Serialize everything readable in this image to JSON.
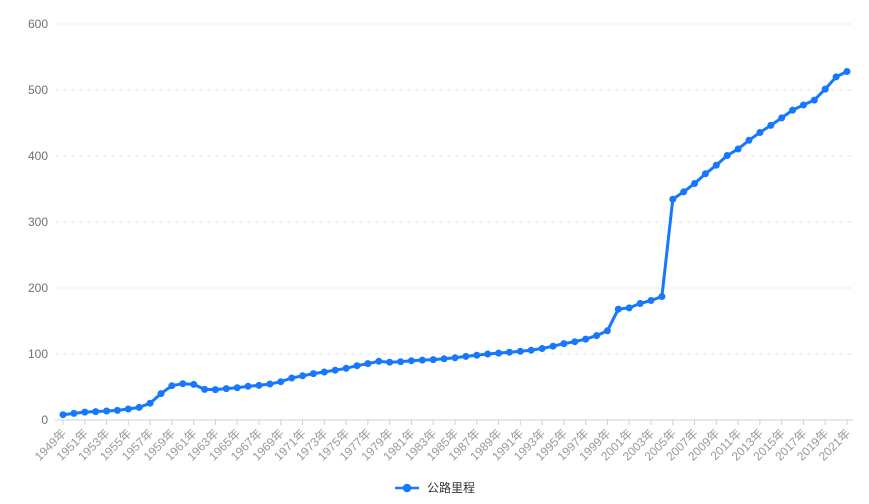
{
  "chart_data": {
    "type": "line",
    "title": "",
    "legend": {
      "position": "bottom-center",
      "items": [
        {
          "label": "公路里程",
          "icon": "line-with-dot"
        }
      ]
    },
    "x": {
      "years": [
        1949,
        1950,
        1951,
        1952,
        1953,
        1954,
        1955,
        1956,
        1957,
        1958,
        1959,
        1960,
        1961,
        1962,
        1963,
        1964,
        1965,
        1966,
        1967,
        1968,
        1969,
        1970,
        1971,
        1972,
        1973,
        1974,
        1975,
        1976,
        1977,
        1978,
        1979,
        1980,
        1981,
        1982,
        1983,
        1984,
        1985,
        1986,
        1987,
        1988,
        1989,
        1990,
        1991,
        1992,
        1993,
        1994,
        1995,
        1996,
        1997,
        1998,
        1999,
        2000,
        2001,
        2002,
        2003,
        2004,
        2005,
        2006,
        2007,
        2008,
        2009,
        2010,
        2011,
        2012,
        2013,
        2014,
        2015,
        2016,
        2017,
        2018,
        2019,
        2020,
        2021
      ],
      "tick_labels": [
        "1949年",
        "1951年",
        "1953年",
        "1955年",
        "1957年",
        "1959年",
        "1961年",
        "1963年",
        "1965年",
        "1967年",
        "1969年",
        "1971年",
        "1973年",
        "1975年",
        "1977年",
        "1979年",
        "1981年",
        "1983年",
        "1985年",
        "1987年",
        "1989年",
        "1991年",
        "1993年",
        "1995年",
        "1997年",
        "1999年",
        "2001年",
        "2003年",
        "2005年",
        "2007年",
        "2009年",
        "2011年",
        "2013年",
        "2015年",
        "2017年",
        "2019年",
        "2021年"
      ],
      "label_rotation_deg": 45
    },
    "y": {
      "min": 0,
      "max": 600,
      "ticks": [
        0,
        100,
        200,
        300,
        400,
        500,
        600
      ]
    },
    "grid": {
      "horizontal_dashed": true,
      "vertical": false
    },
    "series": [
      {
        "name": "公路里程",
        "color": "#1677ff",
        "values": [
          8.1,
          10.0,
          12.0,
          12.7,
          13.7,
          14.6,
          16.7,
          19.1,
          25.5,
          40.0,
          52.0,
          55.0,
          54.0,
          46.4,
          46.0,
          47.5,
          49.0,
          51.0,
          52.5,
          54.5,
          58.0,
          63.7,
          67.0,
          70.3,
          72.8,
          75.5,
          78.4,
          82.3,
          85.5,
          89.0,
          87.6,
          88.3,
          89.8,
          90.7,
          91.5,
          92.7,
          94.2,
          96.3,
          98.2,
          100.0,
          101.4,
          102.8,
          104.1,
          105.7,
          108.4,
          111.8,
          115.7,
          118.6,
          122.6,
          127.9,
          135.2,
          168.0,
          169.8,
          176.5,
          181.0,
          187.1,
          334.5,
          345.7,
          358.4,
          373.0,
          386.1,
          400.8,
          410.6,
          423.8,
          435.6,
          446.4,
          457.7,
          469.6,
          477.3,
          484.7,
          501.3,
          519.8,
          528.1
        ]
      }
    ]
  },
  "colors": {
    "background": "#ffffff",
    "series_blue": "#1677ff",
    "grid_line": "#e2e4e8",
    "axis_line": "#cdd0d5",
    "y_tick_label": "#6e7079",
    "x_tick_label": "#999999",
    "legend_text": "#333333"
  }
}
